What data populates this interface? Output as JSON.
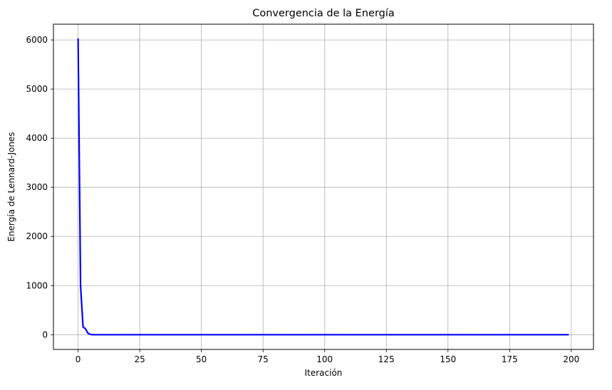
{
  "chart_data": {
    "type": "line",
    "title": "Convergencia de la Energía",
    "xlabel": "Iteración",
    "ylabel": "Energía de Lennard-Jones",
    "xlim": [
      -10,
      209
    ],
    "ylim": [
      -300,
      6320
    ],
    "xticks": [
      0,
      25,
      50,
      75,
      100,
      125,
      150,
      175,
      200
    ],
    "yticks": [
      0,
      1000,
      2000,
      3000,
      4000,
      5000,
      6000
    ],
    "grid": true,
    "line_color": "#0000ff",
    "series": [
      {
        "x": [
          0,
          1,
          2,
          3,
          4,
          5,
          6,
          7,
          8,
          10,
          20,
          50,
          100,
          150,
          199
        ],
        "y": [
          6030,
          1000,
          160,
          120,
          30,
          5,
          0,
          0,
          0,
          0,
          0,
          0,
          0,
          0,
          0
        ]
      }
    ]
  }
}
